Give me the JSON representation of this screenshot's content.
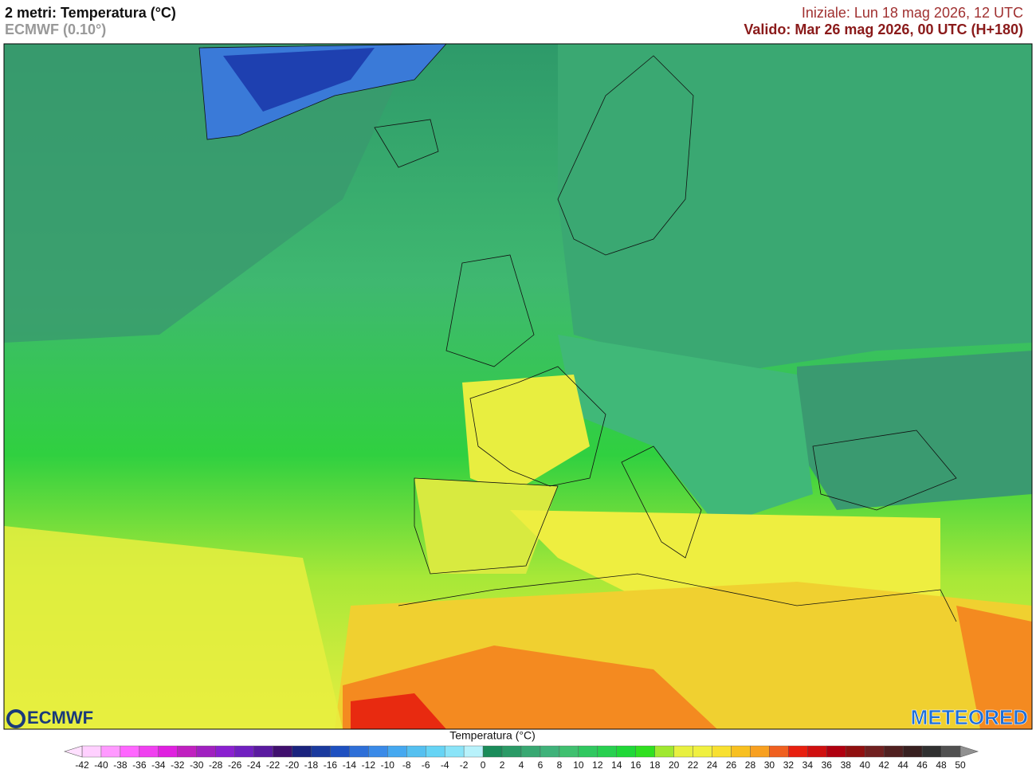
{
  "header": {
    "title": "2 metri: Temperatura (°C)",
    "subtitle": "ECMWF (0.10°)",
    "init": "Iniziale: Lun 18 mag 2026, 12 UTC",
    "valid": "Valido: Mar 26 mag 2026, 00 UTC (H+180)"
  },
  "logos": {
    "left": "ECMWF",
    "right": "METEORED"
  },
  "colorbar": {
    "label": "Temperatura (°C)",
    "ticks": [
      -42,
      -40,
      -38,
      -36,
      -34,
      -32,
      -30,
      -28,
      -26,
      -24,
      -22,
      -20,
      -18,
      -16,
      -14,
      -12,
      -10,
      -8,
      -6,
      -4,
      -2,
      0,
      2,
      4,
      6,
      8,
      10,
      12,
      14,
      16,
      18,
      20,
      22,
      24,
      26,
      28,
      30,
      32,
      34,
      36,
      38,
      40,
      42,
      44,
      46,
      48,
      50
    ],
    "colors": [
      "#ffd0ff",
      "#ff99ff",
      "#ff66ff",
      "#f040f0",
      "#e020e0",
      "#c020c0",
      "#a020c0",
      "#8a20d0",
      "#7020c0",
      "#5a1aa0",
      "#40106e",
      "#1a237e",
      "#1a3a9e",
      "#1e50c0",
      "#2e6fd8",
      "#3a8ae8",
      "#45a8f0",
      "#55c0f0",
      "#66d4f5",
      "#8ae4f8",
      "#b8f2fb",
      "#1a8c5a",
      "#2a9a66",
      "#38a872",
      "#3fb27a",
      "#40c070",
      "#30c860",
      "#28d050",
      "#20d838",
      "#30e020",
      "#a0e830",
      "#e8f040",
      "#f0f040",
      "#f8e030",
      "#f8c020",
      "#f8a020",
      "#f06020",
      "#e82010",
      "#d01010",
      "#b00010",
      "#901010",
      "#702020",
      "#502020",
      "#382020",
      "#303030",
      "#505050"
    ],
    "under_color": "#ffe0ff",
    "over_color": "#909090"
  }
}
